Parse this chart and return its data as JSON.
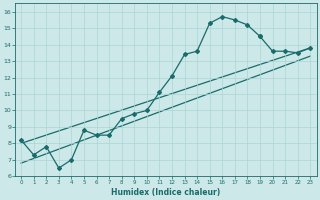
{
  "xlabel": "Humidex (Indice chaleur)",
  "ylabel": "",
  "background_color": "#cce8e8",
  "line_color": "#1a6b6b",
  "grid_color": "#aad4d4",
  "xlim": [
    -0.5,
    23.5
  ],
  "ylim": [
    6,
    16.5
  ],
  "xticks": [
    0,
    1,
    2,
    3,
    4,
    5,
    6,
    7,
    8,
    9,
    10,
    11,
    12,
    13,
    14,
    15,
    16,
    17,
    18,
    19,
    20,
    21,
    22,
    23
  ],
  "yticks": [
    6,
    7,
    8,
    9,
    10,
    11,
    12,
    13,
    14,
    15,
    16
  ],
  "series_zigzag_x": [
    0,
    1,
    2,
    3,
    4,
    5,
    6,
    7,
    8,
    9,
    10,
    11,
    12,
    13,
    14,
    15,
    16,
    17,
    18,
    19
  ],
  "series_zigzag_y": [
    8.2,
    7.3,
    7.8,
    6.5,
    7.0,
    8.8,
    8.5,
    8.5,
    9.5,
    9.8,
    10.0,
    11.1,
    12.1,
    13.4,
    13.6,
    15.3,
    15.7,
    15.5,
    15.2,
    14.5
  ],
  "series_full_x": [
    19,
    20,
    21,
    22,
    23
  ],
  "series_full_y": [
    14.5,
    13.6,
    13.6,
    13.5,
    13.8
  ],
  "line1_x": [
    0,
    23
  ],
  "line1_y": [
    8.0,
    13.8
  ],
  "line2_x": [
    0,
    23
  ],
  "line2_y": [
    6.8,
    13.3
  ]
}
